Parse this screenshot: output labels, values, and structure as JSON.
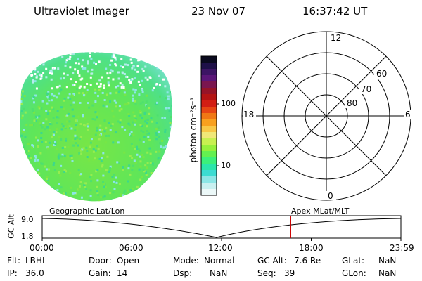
{
  "header": {
    "title": "Ultraviolet Imager",
    "date": "23 Nov 07",
    "time": "16:37:42 UT"
  },
  "colorbar": {
    "unit_label": "photon cm⁻²s⁻¹",
    "ticks": [
      "100",
      "10"
    ],
    "colors_top_to_bottom": [
      "#0a0a1e",
      "#1e1048",
      "#3c1464",
      "#5a1678",
      "#7a1650",
      "#961428",
      "#b41414",
      "#d21e14",
      "#e64614",
      "#f07814",
      "#f8a01e",
      "#f8c846",
      "#f0e878",
      "#c8f050",
      "#96f03c",
      "#64f050",
      "#3cf07a",
      "#2ce6aa",
      "#3cdcd2",
      "#8ce6e6",
      "#c8f0f0",
      "#ecf8f8"
    ]
  },
  "polar_plot": {
    "clock_labels": {
      "top": "12",
      "bottom": "0",
      "left": "18",
      "right": "6"
    },
    "lat_labels": [
      "60",
      "70",
      "80"
    ]
  },
  "timeline": {
    "left_label": "Geographic Lat/Lon",
    "right_label": "Apex MLat/MLT",
    "axis_label": "GC Alt",
    "y_ticks": [
      "9.0",
      "1.8"
    ],
    "x_ticks": [
      "00:00",
      "06:00",
      "12:00",
      "18:00",
      "23:59"
    ],
    "marker_time_fraction": 0.6929
  },
  "status": {
    "flt_label": "Flt:",
    "flt_value": "LBHL",
    "ip_label": "IP:",
    "ip_value": "36.0",
    "door_label": "Door:",
    "door_value": "Open",
    "gain_label": "Gain:",
    "gain_value": "14",
    "mode_label": "Mode:",
    "mode_value": "Normal",
    "dsp_label": "Dsp:",
    "dsp_value": "NaN",
    "gcalt_label": "GC Alt:",
    "gcalt_value": "7.6 Re",
    "seq_label": "Seq:",
    "seq_value": "39",
    "glat_label": "GLat:",
    "glat_value": "NaN",
    "glon_label": "GLon:",
    "glon_value": "NaN"
  },
  "colors": {
    "marker": "#cc0000",
    "image_green": "#5ee65a",
    "image_cyan": "#8ce6e6"
  }
}
